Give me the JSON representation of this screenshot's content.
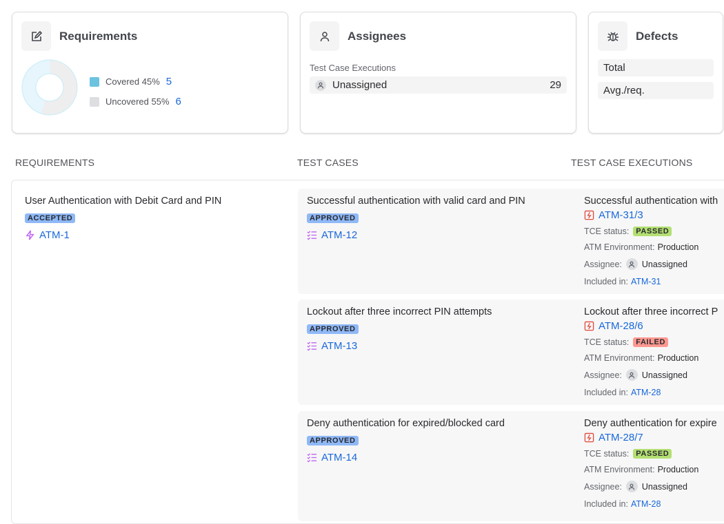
{
  "summary": {
    "requirements": {
      "title": "Requirements",
      "icon": "edit-icon",
      "legend": [
        {
          "label": "Covered 45%",
          "count": "5",
          "color": "#6cc3e0",
          "percent": 45
        },
        {
          "label": "Uncovered 55%",
          "count": "6",
          "color": "#dddee1",
          "percent": 55
        }
      ]
    },
    "assignees": {
      "title": "Assignees",
      "icon": "person-icon",
      "subtitle": "Test Case Executions",
      "rows": [
        {
          "label": "Unassigned",
          "count": "29"
        }
      ]
    },
    "defects": {
      "title": "Defects",
      "icon": "bug-icon",
      "rows": [
        {
          "label": "Total"
        },
        {
          "label": "Avg./req."
        }
      ]
    }
  },
  "columns": {
    "requirements": "REQUIREMENTS",
    "test_cases": "TEST CASES",
    "executions": "TEST CASE EXECUTIONS"
  },
  "requirement": {
    "title": "User Authentication with Debit Card and PIN",
    "status": "ACCEPTED",
    "key": "ATM-1"
  },
  "labels": {
    "tce_status": "TCE status:",
    "environment": "ATM Environment:",
    "assignee": "Assignee:",
    "included": "Included in:"
  },
  "rows": [
    {
      "tc": {
        "title": "Successful authentication with valid card and PIN",
        "status": "APPROVED",
        "key": "ATM-12"
      },
      "tce": {
        "title": "Successful authentication with",
        "key": "ATM-31/3",
        "status": "PASSED",
        "environment": "Production",
        "assignee": "Unassigned",
        "included": "ATM-31"
      }
    },
    {
      "tc": {
        "title": "Lockout after three incorrect PIN attempts",
        "status": "APPROVED",
        "key": "ATM-13"
      },
      "tce": {
        "title": "Lockout after three incorrect P",
        "key": "ATM-28/6",
        "status": "FAILED",
        "environment": "Production",
        "assignee": "Unassigned",
        "included": "ATM-28"
      }
    },
    {
      "tc": {
        "title": "Deny authentication for expired/blocked card",
        "status": "APPROVED",
        "key": "ATM-14"
      },
      "tce": {
        "title": "Deny authentication for expire",
        "key": "ATM-28/7",
        "status": "PASSED",
        "environment": "Production",
        "assignee": "Unassigned",
        "included": "ATM-28"
      }
    }
  ]
}
